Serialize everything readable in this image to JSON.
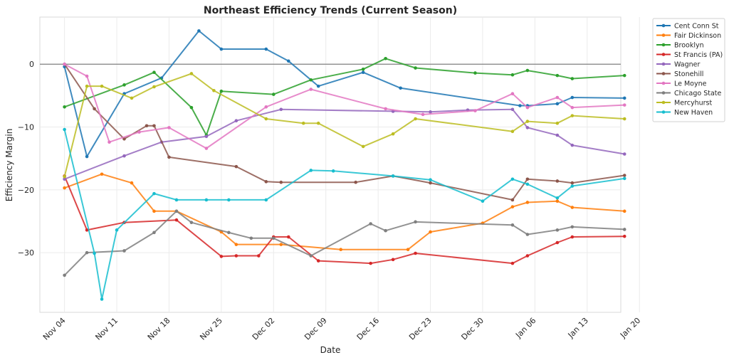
{
  "chart_data": {
    "type": "line",
    "title": "Northeast Efficiency Trends (Current Season)",
    "xlabel": "Date",
    "ylabel": "Efficiency Margin",
    "x_tick_labels": [
      "Nov 04",
      "Nov 11",
      "Nov 18",
      "Nov 25",
      "Dec 02",
      "Dec 09",
      "Dec 16",
      "Dec 23",
      "Dec 30",
      "Jan 06",
      "Jan 13",
      "Jan 20"
    ],
    "x_range_days": [
      -3.3,
      74.5
    ],
    "y_ticks": [
      0,
      -10,
      -20,
      -30
    ],
    "ylim": [
      -39.5,
      7.5
    ],
    "reference_line": 0,
    "grid": true,
    "legend_position": "outside top-right",
    "series": [
      {
        "name": "Cent Conn St",
        "color": "#1f77b4",
        "x": [
          0,
          3,
          8,
          13,
          18,
          21,
          27,
          30,
          34,
          40,
          45,
          61,
          62,
          66,
          68,
          75
        ],
        "y": [
          -0.4,
          -14.7,
          -4.7,
          -2.2,
          5.3,
          2.4,
          2.4,
          0.5,
          -3.5,
          -1.3,
          -3.8,
          -6.6,
          -6.6,
          -6.3,
          -5.3,
          -5.4
        ]
      },
      {
        "name": "Fair Dickinson",
        "color": "#ff7f0e",
        "x": [
          0,
          5,
          9,
          12,
          15,
          21,
          23,
          29,
          37,
          46,
          49,
          56,
          60,
          62,
          66,
          68,
          75
        ],
        "y": [
          -19.7,
          -17.5,
          -18.9,
          -23.4,
          -23.4,
          -26.7,
          -28.7,
          -28.7,
          -29.5,
          -29.5,
          -26.7,
          -25.3,
          -22.7,
          -22.0,
          -21.8,
          -22.8,
          -23.4
        ]
      },
      {
        "name": "Brooklyn",
        "color": "#2ca02c",
        "x": [
          0,
          8,
          12,
          17,
          19,
          21,
          28,
          33,
          40,
          43,
          47,
          55,
          60,
          62,
          66,
          68,
          75
        ],
        "y": [
          -6.8,
          -3.3,
          -1.3,
          -6.9,
          -11.3,
          -4.3,
          -4.8,
          -2.5,
          -0.8,
          0.9,
          -0.6,
          -1.4,
          -1.7,
          -1.0,
          -1.8,
          -2.3,
          -1.8
        ]
      },
      {
        "name": "St Francis (PA)",
        "color": "#d62728",
        "x": [
          0,
          3,
          8,
          15,
          21,
          23,
          26,
          28,
          30,
          34,
          41,
          44,
          47,
          60,
          62,
          66,
          68,
          75
        ],
        "y": [
          -17.8,
          -26.4,
          -25.2,
          -24.8,
          -30.6,
          -30.5,
          -30.5,
          -27.5,
          -27.5,
          -31.3,
          -31.7,
          -31.1,
          -30.1,
          -31.7,
          -30.5,
          -28.4,
          -27.5,
          -27.4
        ]
      },
      {
        "name": "Wagner",
        "color": "#9467bd",
        "x": [
          0,
          8,
          13,
          19,
          23,
          29,
          44,
          49,
          54,
          60,
          62,
          66,
          68,
          75
        ],
        "y": [
          -18.3,
          -14.6,
          -12.4,
          -11.5,
          -9.0,
          -7.2,
          -7.5,
          -7.6,
          -7.3,
          -7.2,
          -10.1,
          -11.3,
          -12.9,
          -14.3
        ]
      },
      {
        "name": "Stonehill",
        "color": "#8c564b",
        "x": [
          0,
          4,
          8,
          11,
          12,
          14,
          23,
          27,
          29,
          39,
          44,
          49,
          60,
          62,
          66,
          68,
          75
        ],
        "y": [
          0,
          -7.1,
          -11.9,
          -9.8,
          -9.8,
          -14.8,
          -16.3,
          -18.7,
          -18.8,
          -18.8,
          -17.8,
          -18.9,
          -21.6,
          -18.3,
          -18.6,
          -18.9,
          -17.7
        ]
      },
      {
        "name": "Le Moyne",
        "color": "#e377c2",
        "x": [
          0,
          3,
          6,
          10,
          14,
          19,
          27,
          33,
          43,
          48,
          55,
          60,
          62,
          66,
          68,
          75
        ],
        "y": [
          0,
          -1.9,
          -12.4,
          -10.8,
          -10.1,
          -13.4,
          -6.8,
          -4.0,
          -7.1,
          -8.0,
          -7.4,
          -4.7,
          -6.9,
          -5.3,
          -6.9,
          -6.5
        ]
      },
      {
        "name": "Chicago State",
        "color": "#7f7f7f",
        "x": [
          0,
          3,
          8,
          12,
          15,
          17,
          22,
          25,
          28,
          33,
          41,
          43,
          47,
          60,
          62,
          66,
          68,
          75
        ],
        "y": [
          -33.6,
          -30.0,
          -29.7,
          -26.8,
          -23.4,
          -25.2,
          -26.8,
          -27.7,
          -27.7,
          -30.5,
          -25.4,
          -26.5,
          -25.1,
          -25.6,
          -27.1,
          -26.4,
          -25.9,
          -26.3
        ]
      },
      {
        "name": "Mercyhurst",
        "color": "#bcbd22",
        "x": [
          0,
          3,
          5,
          9,
          12,
          17,
          20,
          27,
          32,
          34,
          40,
          44,
          47,
          60,
          62,
          66,
          68,
          75
        ],
        "y": [
          -17.9,
          -3.5,
          -3.5,
          -5.4,
          -3.6,
          -1.5,
          -4.2,
          -8.7,
          -9.4,
          -9.4,
          -13.1,
          -11.1,
          -8.7,
          -10.7,
          -9.1,
          -9.4,
          -8.2,
          -8.7
        ]
      },
      {
        "name": "New Haven",
        "color": "#17becf",
        "x": [
          0,
          4,
          5,
          7,
          12,
          15,
          19,
          22,
          27,
          33,
          36,
          44,
          49,
          56,
          60,
          62,
          66,
          68,
          75
        ],
        "y": [
          -10.4,
          -30.1,
          -37.4,
          -26.4,
          -20.6,
          -21.6,
          -21.6,
          -21.6,
          -21.6,
          -16.9,
          -17.0,
          -17.8,
          -18.4,
          -21.8,
          -18.3,
          -19.1,
          -21.3,
          -19.4,
          -18.2
        ]
      }
    ]
  }
}
